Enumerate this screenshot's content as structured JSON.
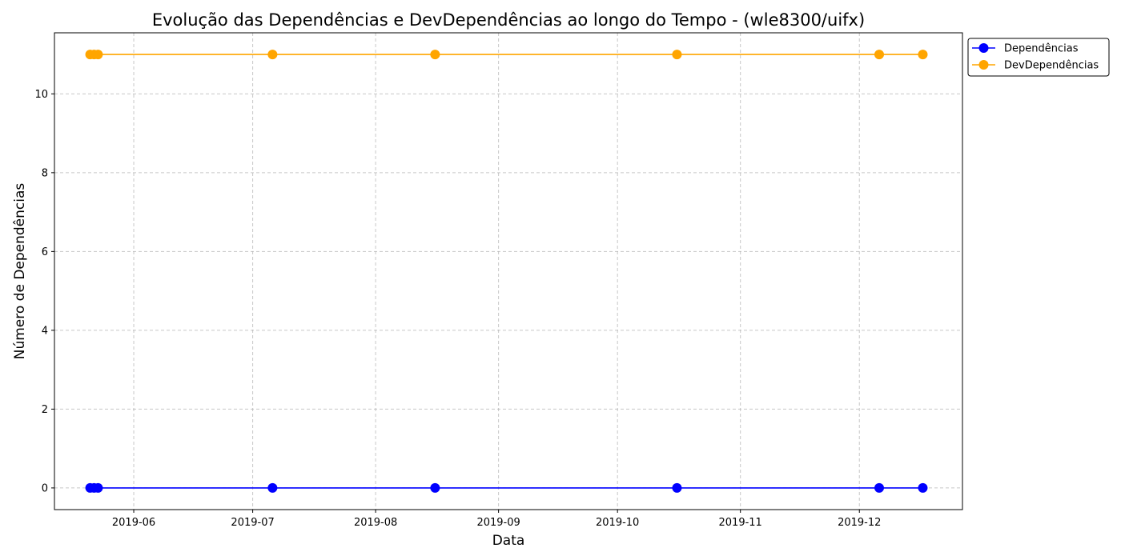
{
  "chart_data": {
    "type": "line",
    "title": "Evolução das Dependências e DevDependências ao longo do Tempo - (wle8300/uifx)",
    "xlabel": "Data",
    "ylabel": "Número de Dependências",
    "xlim": [
      "2019-05-12",
      "2019-12-27"
    ],
    "ylim": [
      -0.55,
      11.55
    ],
    "x_ticks": [
      "2019-06-01",
      "2019-07-01",
      "2019-08-01",
      "2019-09-01",
      "2019-10-01",
      "2019-11-01",
      "2019-12-01"
    ],
    "x_tick_labels": [
      "2019-06",
      "2019-07",
      "2019-08",
      "2019-09",
      "2019-10",
      "2019-11",
      "2019-12"
    ],
    "y_ticks": [
      0,
      2,
      4,
      6,
      8,
      10
    ],
    "y_tick_labels": [
      "0",
      "2",
      "4",
      "6",
      "8",
      "10"
    ],
    "grid": true,
    "legend_position": "outside-top-right",
    "x": [
      "2019-05-21",
      "2019-05-22",
      "2019-05-23",
      "2019-07-06",
      "2019-08-16",
      "2019-10-16",
      "2019-12-06",
      "2019-12-17"
    ],
    "series": [
      {
        "name": "Dependências",
        "color": "#0000ff",
        "marker": "circle",
        "values": [
          0,
          0,
          0,
          0,
          0,
          0,
          0,
          0
        ]
      },
      {
        "name": "DevDependências",
        "color": "#ffa500",
        "marker": "circle",
        "values": [
          11,
          11,
          11,
          11,
          11,
          11,
          11,
          11
        ]
      }
    ]
  }
}
